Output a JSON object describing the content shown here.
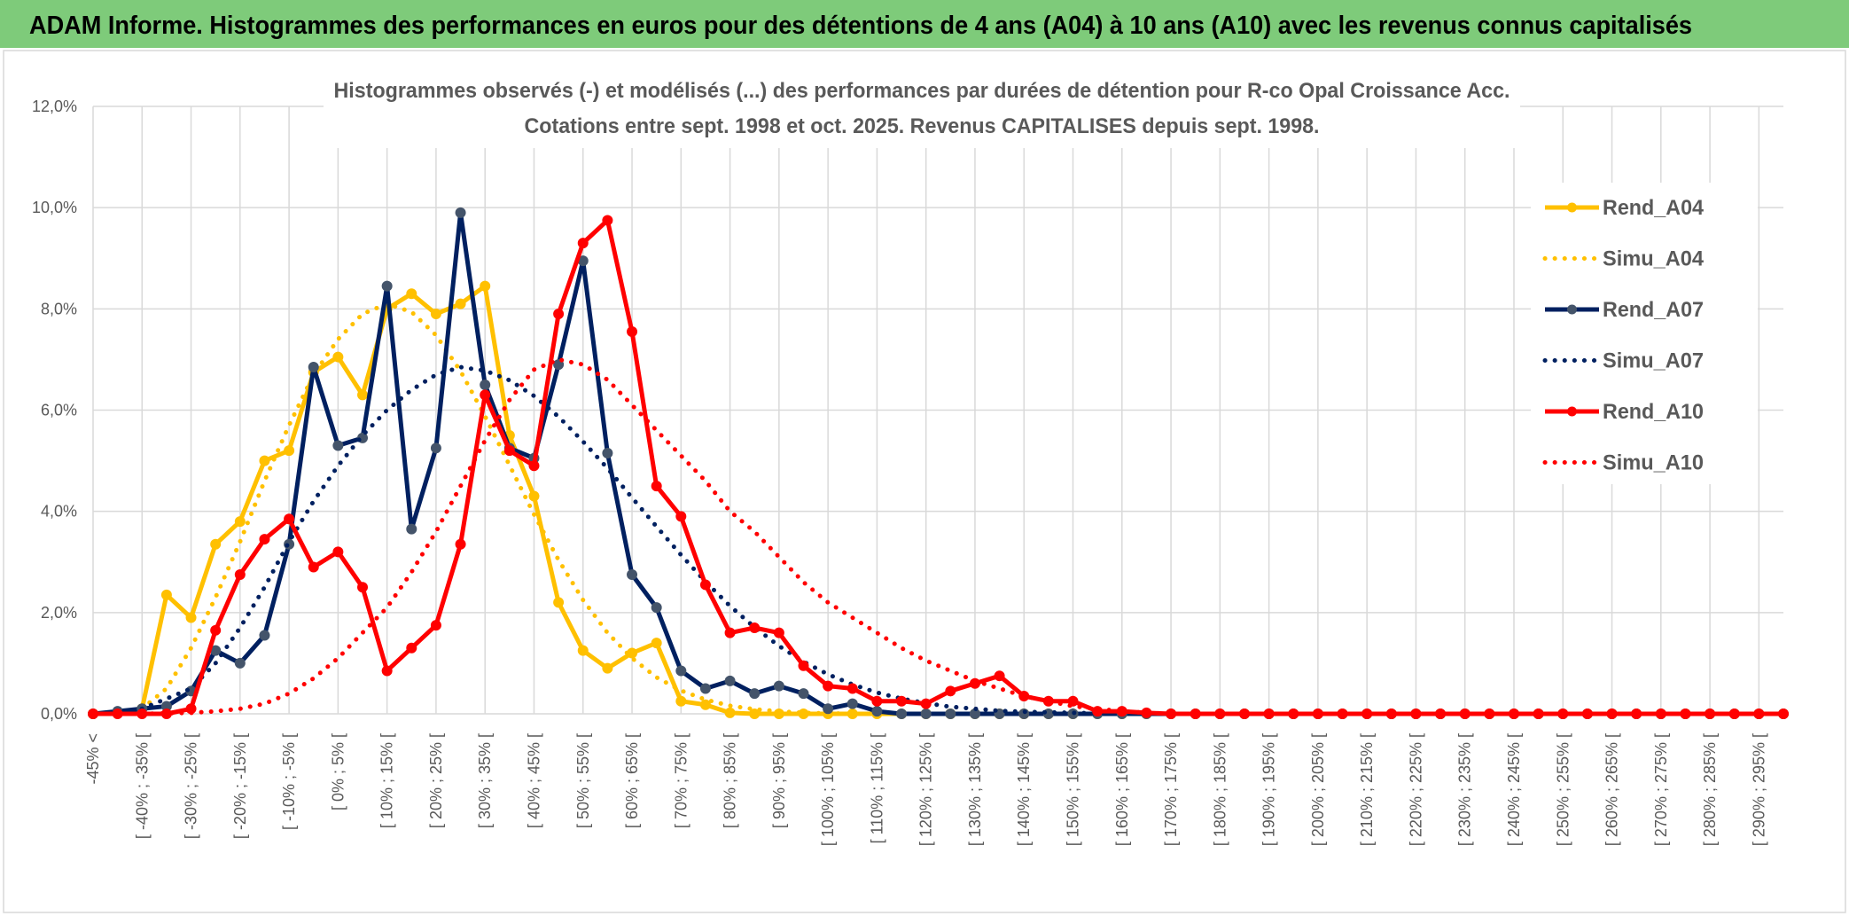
{
  "header": {
    "title": "ADAM Informe. Histogrammes des performances en euros pour des détentions de 4 ans (A04) à 10 ans (A10) avec les revenus connus capitalisés"
  },
  "chart_data": {
    "type": "line",
    "title": "Histogrammes observés (-) et modélisés (...) des performances par durées de détention pour R-co Opal Croissance Acc.",
    "subtitle": "Cotations entre sept. 1998 et oct. 2025. Revenus CAPITALISES depuis sept. 1998.",
    "categories": [
      "-45% <",
      null,
      "[ -40% ; -35% [",
      null,
      "[ -30% ; -25% [",
      null,
      "[ -20% ; -15% [",
      null,
      "[ -10% ; -5% [",
      null,
      "[ 0% ; 5% [",
      null,
      "[ 10% ; 15% [",
      null,
      "[ 20% ; 25% [",
      null,
      "[ 30% ; 35% [",
      null,
      "[ 40% ; 45% [",
      null,
      "[ 50% ; 55% [",
      null,
      "[ 60% ; 65% [",
      null,
      "[ 70% ; 75% [",
      null,
      "[ 80% ; 85% [",
      null,
      "[ 90% ; 95% [",
      null,
      "[ 100% ; 105% [",
      null,
      "[ 110% ; 115% [",
      null,
      "[ 120% ; 125% [",
      null,
      "[ 130% ; 135% [",
      null,
      "[ 140% ; 145% [",
      null,
      "[ 150% ; 155% [",
      null,
      "[ 160% ; 165% [",
      null,
      "[ 170% ; 175% [",
      null,
      "[ 180% ; 185% [",
      null,
      "[ 190% ; 195% [",
      null,
      "[ 200% ; 205% [",
      null,
      "[ 210% ; 215% [",
      null,
      "[ 220% ; 225% [",
      null,
      "[ 230% ; 235% [",
      null,
      "[ 240% ; 245% [",
      null,
      "[ 250% ; 255% [",
      null,
      "[ 260% ; 265% [",
      null,
      "[ 270% ; 275% [",
      null,
      "[ 280% ; 285% [",
      null,
      "[ 290% ; 295% [",
      null
    ],
    "series": [
      {
        "name": "Rend_A04",
        "color": "#FFC000",
        "style": "solid",
        "markers": true,
        "marker_color": "#FFC000",
        "values": [
          0,
          0.02,
          0.1,
          2.35,
          1.9,
          3.35,
          3.8,
          5.0,
          5.2,
          6.75,
          7.05,
          6.3,
          8.0,
          8.3,
          7.9,
          8.1,
          8.45,
          5.5,
          4.3,
          2.2,
          1.25,
          0.9,
          1.2,
          1.4,
          0.25,
          0.18,
          0.02,
          0,
          0,
          0,
          0,
          0,
          0,
          0,
          0,
          0,
          0,
          0,
          0,
          0,
          0,
          0,
          0,
          0,
          0,
          0,
          0,
          0,
          0,
          0,
          0,
          0,
          0,
          0,
          0,
          0,
          0,
          0,
          0,
          0,
          0,
          0,
          0,
          0,
          0,
          0,
          0,
          0,
          0,
          0
        ]
      },
      {
        "name": "Simu_A04",
        "color": "#FFC000",
        "style": "dotted",
        "markers": false,
        "values": [
          0,
          0.02,
          0.1,
          0.5,
          1.3,
          2.3,
          3.4,
          4.6,
          5.7,
          6.7,
          7.4,
          7.9,
          8.1,
          7.94,
          7.48,
          6.77,
          5.88,
          4.91,
          3.94,
          3.04,
          2.25,
          1.6,
          1.1,
          0.72,
          0.46,
          0.28,
          0.16,
          0.09,
          0.05,
          0.02,
          0.01,
          0,
          0,
          0,
          0,
          0,
          0,
          0,
          0,
          0,
          0,
          0,
          0,
          0,
          0,
          0,
          0,
          0,
          0,
          0,
          0,
          0,
          0,
          0,
          0,
          0,
          0,
          0,
          0,
          0,
          0,
          0,
          0,
          0,
          0,
          0,
          0,
          0,
          0,
          0
        ]
      },
      {
        "name": "Rend_A07",
        "color": "#002060",
        "style": "solid",
        "markers": true,
        "marker_color": "#44546A",
        "values": [
          0,
          0.05,
          0.1,
          0.15,
          0.45,
          1.25,
          1.0,
          1.55,
          3.35,
          6.85,
          5.3,
          5.45,
          8.45,
          3.65,
          5.25,
          9.9,
          6.5,
          5.25,
          5.05,
          6.9,
          8.95,
          5.15,
          2.75,
          2.1,
          0.85,
          0.5,
          0.65,
          0.4,
          0.55,
          0.4,
          0.1,
          0.2,
          0.05,
          0,
          0,
          0,
          0,
          0,
          0,
          0,
          0,
          0,
          0,
          0,
          0,
          0,
          0,
          0,
          0,
          0,
          0,
          0,
          0,
          0,
          0,
          0,
          0,
          0,
          0,
          0,
          0,
          0,
          0,
          0,
          0,
          0,
          0,
          0,
          0,
          0
        ]
      },
      {
        "name": "Simu_A07",
        "color": "#002060",
        "style": "dotted",
        "markers": false,
        "values": [
          0,
          0.02,
          0.1,
          0.3,
          0.5,
          1.0,
          1.7,
          2.5,
          3.4,
          4.2,
          4.9,
          5.5,
          6.0,
          6.4,
          6.7,
          6.85,
          6.78,
          6.59,
          6.28,
          5.87,
          5.38,
          4.85,
          4.27,
          3.7,
          3.14,
          2.61,
          2.13,
          1.71,
          1.34,
          1.03,
          0.78,
          0.58,
          0.42,
          0.3,
          0.21,
          0.14,
          0.1,
          0.06,
          0.04,
          0.03,
          0.02,
          0.01,
          0,
          0,
          0,
          0,
          0,
          0,
          0,
          0,
          0,
          0,
          0,
          0,
          0,
          0,
          0,
          0,
          0,
          0,
          0,
          0,
          0,
          0,
          0,
          0,
          0,
          0,
          0,
          0
        ]
      },
      {
        "name": "Rend_A10",
        "color": "#FF0000",
        "style": "solid",
        "markers": true,
        "marker_color": "#FF0000",
        "values": [
          0,
          0,
          0,
          0,
          0.1,
          1.65,
          2.75,
          3.45,
          3.85,
          2.9,
          3.2,
          2.5,
          0.85,
          1.3,
          1.75,
          3.35,
          6.3,
          5.2,
          4.9,
          7.9,
          9.3,
          9.75,
          7.55,
          4.5,
          3.9,
          2.55,
          1.6,
          1.7,
          1.6,
          0.95,
          0.55,
          0.5,
          0.25,
          0.25,
          0.2,
          0.45,
          0.6,
          0.75,
          0.35,
          0.25,
          0.25,
          0.05,
          0.05,
          0.02,
          0,
          0,
          0,
          0,
          0,
          0,
          0,
          0,
          0,
          0,
          0,
          0,
          0,
          0,
          0,
          0,
          0,
          0,
          0,
          0,
          0,
          0,
          0,
          0,
          0,
          0
        ]
      },
      {
        "name": "Simu_A10",
        "color": "#FF0000",
        "style": "dotted",
        "markers": false,
        "values": [
          0,
          0,
          0,
          0.01,
          0.02,
          0.05,
          0.1,
          0.2,
          0.4,
          0.7,
          1.1,
          1.6,
          2.1,
          2.8,
          3.6,
          4.5,
          5.4,
          6.2,
          6.8,
          7.0,
          6.9,
          6.6,
          6.1,
          5.6,
          5.1,
          4.6,
          4.0,
          3.6,
          3.1,
          2.6,
          2.2,
          1.9,
          1.6,
          1.3,
          1.05,
          0.85,
          0.65,
          0.5,
          0.35,
          0.25,
          0.15,
          0.1,
          0.05,
          0.02,
          0,
          0,
          0,
          0,
          0,
          0,
          0,
          0,
          0,
          0,
          0,
          0,
          0,
          0,
          0,
          0,
          0,
          0,
          0,
          0,
          0,
          0,
          0,
          0,
          0,
          0
        ]
      }
    ],
    "ylim": [
      0,
      12
    ],
    "yticks": [
      {
        "value": 0,
        "label": "0,0%"
      },
      {
        "value": 2,
        "label": "2,0%"
      },
      {
        "value": 4,
        "label": "4,0%"
      },
      {
        "value": 6,
        "label": "6,0%"
      },
      {
        "value": 8,
        "label": "8,0%"
      },
      {
        "value": 10,
        "label": "10,0%"
      },
      {
        "value": 12,
        "label": "12,0%"
      }
    ],
    "grid": true,
    "legend": "right"
  }
}
